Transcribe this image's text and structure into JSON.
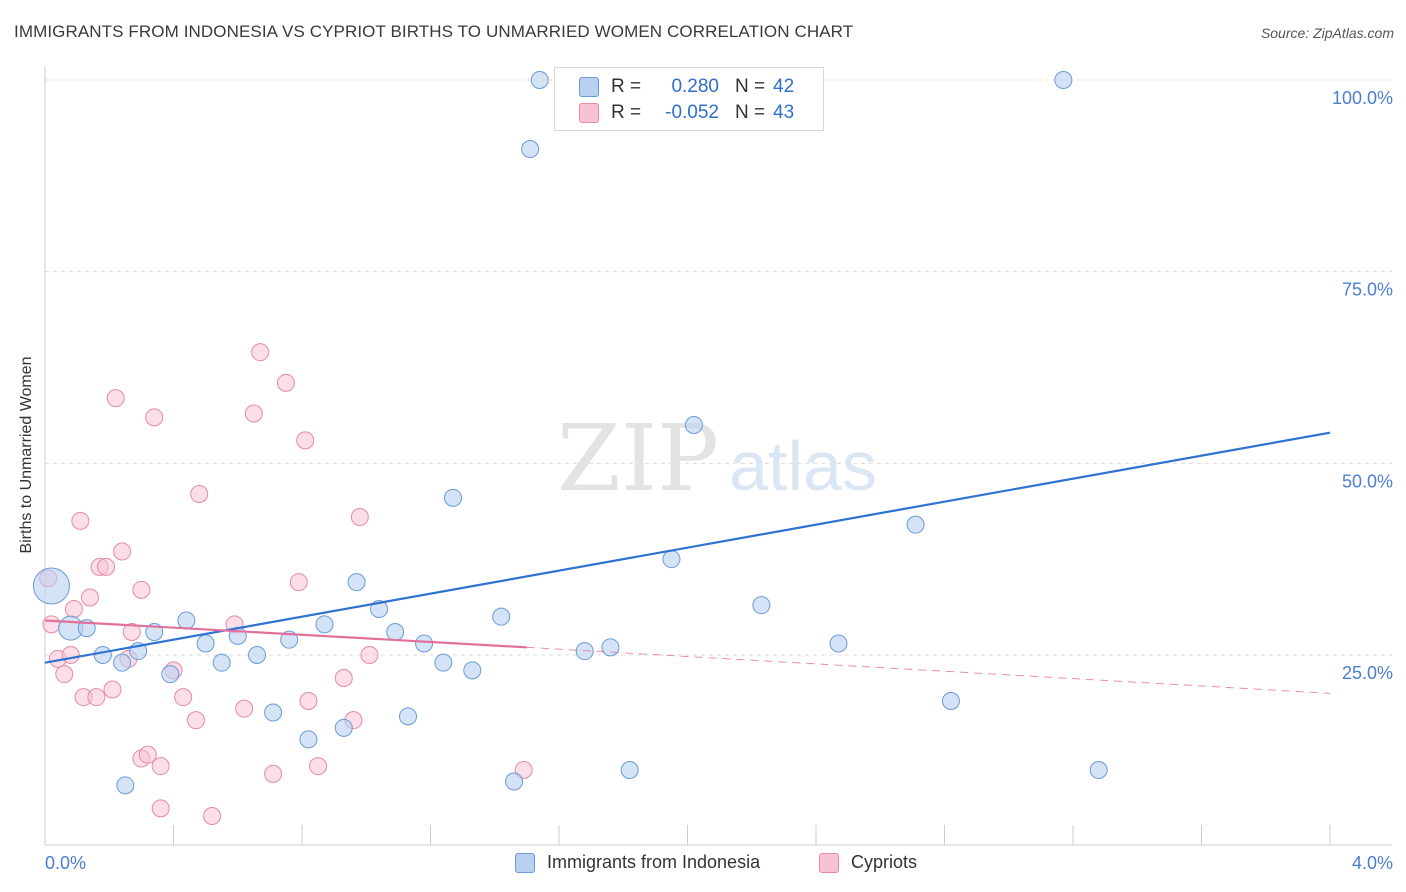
{
  "title": "IMMIGRANTS FROM INDONESIA VS CYPRIOT BIRTHS TO UNMARRIED WOMEN CORRELATION CHART",
  "source": "Source: ZipAtlas.com",
  "watermark": {
    "zip": "ZIP",
    "atlas": "atlas"
  },
  "legend_top": {
    "rows": [
      {
        "r_label": "R =",
        "r_value": "0.280",
        "n_label": "N =",
        "n_value": "42"
      },
      {
        "r_label": "R =",
        "r_value": "-0.052",
        "n_label": "N =",
        "n_value": "43"
      }
    ]
  },
  "legend_bottom": [
    "Immigrants from Indonesia",
    "Cypriots"
  ],
  "colors": {
    "blue_fill": "#b9d1f1",
    "blue_stroke": "#6a9bd8",
    "blue_line": "#2e72d2",
    "pink_fill": "#f7c3d3",
    "pink_stroke": "#e68aa8",
    "pink_line": "#e3709a",
    "axis_text": "#4a7fd0",
    "grid": "#dddddd"
  },
  "chart_data": {
    "type": "scatter",
    "title": "IMMIGRANTS FROM INDONESIA VS CYPRIOT BIRTHS TO UNMARRIED WOMEN CORRELATION CHART",
    "xlabel": "",
    "ylabel": "Births to Unmarried Women",
    "xlim": [
      0,
      4.0
    ],
    "ylim": [
      0,
      105
    ],
    "x_tick_labels": {
      "left": "0.0%",
      "right": "4.0%"
    },
    "y_ticks": [
      {
        "value": 25,
        "label": "25.0%"
      },
      {
        "value": 50,
        "label": "50.0%"
      },
      {
        "value": 75,
        "label": "75.0%"
      },
      {
        "value": 100,
        "label": "100.0%"
      }
    ],
    "series": [
      {
        "name": "Immigrants from Indonesia",
        "r": 0.28,
        "n": 42,
        "trend": {
          "x0": 0.0,
          "y0": 24.0,
          "x1": 4.0,
          "y1": 54.0
        },
        "points": [
          {
            "x": 0.02,
            "y": 34.0,
            "size": "large"
          },
          {
            "x": 0.08,
            "y": 28.5
          },
          {
            "x": 0.13,
            "y": 28.5
          },
          {
            "x": 0.18,
            "y": 25.0
          },
          {
            "x": 0.24,
            "y": 24.0
          },
          {
            "x": 0.29,
            "y": 25.5
          },
          {
            "x": 0.34,
            "y": 28.0
          },
          {
            "x": 0.39,
            "y": 22.5
          },
          {
            "x": 0.44,
            "y": 29.5
          },
          {
            "x": 0.5,
            "y": 26.5
          },
          {
            "x": 0.55,
            "y": 24.0
          },
          {
            "x": 0.6,
            "y": 27.5
          },
          {
            "x": 0.66,
            "y": 25.0
          },
          {
            "x": 0.71,
            "y": 17.5
          },
          {
            "x": 0.76,
            "y": 27.0
          },
          {
            "x": 0.82,
            "y": 14.0
          },
          {
            "x": 0.87,
            "y": 29.0
          },
          {
            "x": 0.93,
            "y": 15.5
          },
          {
            "x": 0.97,
            "y": 34.5
          },
          {
            "x": 1.04,
            "y": 31.0
          },
          {
            "x": 1.09,
            "y": 28.0
          },
          {
            "x": 1.13,
            "y": 17.0
          },
          {
            "x": 1.18,
            "y": 26.5
          },
          {
            "x": 1.24,
            "y": 24.0
          },
          {
            "x": 1.27,
            "y": 45.5
          },
          {
            "x": 1.33,
            "y": 23.0
          },
          {
            "x": 1.42,
            "y": 30.0
          },
          {
            "x": 1.46,
            "y": 8.5
          },
          {
            "x": 1.51,
            "y": 91.0
          },
          {
            "x": 1.54,
            "y": 100.0
          },
          {
            "x": 1.68,
            "y": 25.5
          },
          {
            "x": 1.76,
            "y": 26.0
          },
          {
            "x": 1.82,
            "y": 10.0
          },
          {
            "x": 1.95,
            "y": 37.5
          },
          {
            "x": 2.02,
            "y": 55.0
          },
          {
            "x": 2.23,
            "y": 31.5
          },
          {
            "x": 2.47,
            "y": 26.5
          },
          {
            "x": 2.71,
            "y": 42.0
          },
          {
            "x": 2.82,
            "y": 19.0
          },
          {
            "x": 3.17,
            "y": 100.0
          },
          {
            "x": 3.28,
            "y": 10.0
          },
          {
            "x": 0.25,
            "y": 8.0
          }
        ]
      },
      {
        "name": "Cypriots",
        "r": -0.052,
        "n": 43,
        "trend": {
          "x0": 0.0,
          "y0": 29.5,
          "x1": 1.5,
          "y1": 26.0,
          "x_end": 4.0,
          "y_end": 20.0
        },
        "points": [
          {
            "x": 0.01,
            "y": 35.0
          },
          {
            "x": 0.02,
            "y": 29.0
          },
          {
            "x": 0.04,
            "y": 24.5
          },
          {
            "x": 0.06,
            "y": 22.5
          },
          {
            "x": 0.08,
            "y": 25.0
          },
          {
            "x": 0.09,
            "y": 31.0
          },
          {
            "x": 0.11,
            "y": 42.5
          },
          {
            "x": 0.12,
            "y": 19.5
          },
          {
            "x": 0.14,
            "y": 32.5
          },
          {
            "x": 0.16,
            "y": 19.5
          },
          {
            "x": 0.17,
            "y": 36.5
          },
          {
            "x": 0.19,
            "y": 36.5
          },
          {
            "x": 0.21,
            "y": 20.5
          },
          {
            "x": 0.22,
            "y": 58.5
          },
          {
            "x": 0.24,
            "y": 38.5
          },
          {
            "x": 0.26,
            "y": 24.5
          },
          {
            "x": 0.27,
            "y": 28.0
          },
          {
            "x": 0.3,
            "y": 33.5
          },
          {
            "x": 0.3,
            "y": 11.5
          },
          {
            "x": 0.32,
            "y": 12.0
          },
          {
            "x": 0.34,
            "y": 56.0
          },
          {
            "x": 0.36,
            "y": 10.5
          },
          {
            "x": 0.36,
            "y": 5.0
          },
          {
            "x": 0.4,
            "y": 23.0
          },
          {
            "x": 0.43,
            "y": 19.5
          },
          {
            "x": 0.47,
            "y": 16.5
          },
          {
            "x": 0.48,
            "y": 46.0
          },
          {
            "x": 0.52,
            "y": 4.0
          },
          {
            "x": 0.59,
            "y": 29.0
          },
          {
            "x": 0.62,
            "y": 18.0
          },
          {
            "x": 0.65,
            "y": 56.5
          },
          {
            "x": 0.67,
            "y": 64.5
          },
          {
            "x": 0.71,
            "y": 9.5
          },
          {
            "x": 0.75,
            "y": 60.5
          },
          {
            "x": 0.79,
            "y": 34.5
          },
          {
            "x": 0.81,
            "y": 53.0
          },
          {
            "x": 0.82,
            "y": 19.0
          },
          {
            "x": 0.85,
            "y": 10.5
          },
          {
            "x": 0.93,
            "y": 22.0
          },
          {
            "x": 0.96,
            "y": 16.5
          },
          {
            "x": 0.98,
            "y": 43.0
          },
          {
            "x": 1.01,
            "y": 25.0
          },
          {
            "x": 1.49,
            "y": 10.0
          }
        ]
      }
    ]
  }
}
